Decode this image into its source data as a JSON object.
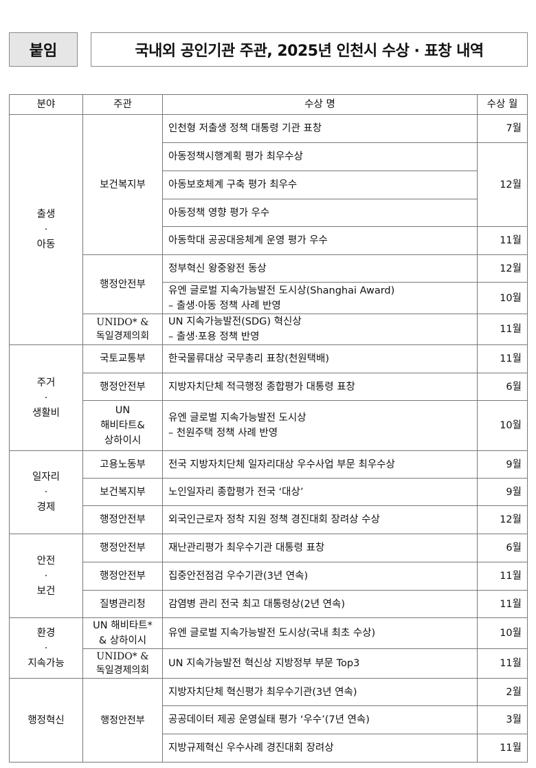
{
  "header": {
    "tag": "붙임",
    "title": "국내외 공인기관 주관, 2025년 인천시 수상 · 표창 내역"
  },
  "table": {
    "columns": [
      "분야",
      "주관",
      "수상 명",
      "수상 월"
    ],
    "rows": [
      {
        "field": [
          "출생",
          "·",
          "아동"
        ],
        "field_span": 8,
        "org": [
          "보건복지부"
        ],
        "org_span": 5,
        "award": [
          "인천형 저출생 정책 대통령 기관 표창"
        ],
        "month": "7월",
        "month_span": 1
      },
      {
        "award": [
          "아동정책시행계획 평가 최우수상"
        ],
        "month": "12월",
        "month_span": 3
      },
      {
        "award": [
          "아동보호체계 구축 평가 최우수"
        ]
      },
      {
        "award": [
          "아동정책 영향 평가 우수"
        ]
      },
      {
        "award": [
          "아동학대 공공대응체계 운영 평가 우수"
        ],
        "month": "11월",
        "month_span": 1
      },
      {
        "org": [
          "행정안전부"
        ],
        "org_span": 2,
        "award": [
          "정부혁신 왕중왕전 동상"
        ],
        "month": "12월",
        "month_span": 1
      },
      {
        "award": [
          "유엔 글로벌 지속가능발전 도시상(Shanghai Award)",
          "– 출생·아동 정책 사례 반영"
        ],
        "month": "10월",
        "month_span": 1
      },
      {
        "org": [
          "UNIDO* &",
          "독일경제의회"
        ],
        "org_serif": true,
        "org_span": 1,
        "award": [
          "UN 지속가능발전(SDG) 혁신상",
          "– 출생·포용 정책 반영"
        ],
        "month": "11월",
        "month_span": 1
      },
      {
        "field": [
          "주거",
          "·",
          "생활비"
        ],
        "field_span": 3,
        "org": [
          "국토교통부"
        ],
        "org_span": 1,
        "award": [
          "한국물류대상 국무총리 표창(천원택배)"
        ],
        "month": "11월",
        "month_span": 1
      },
      {
        "org": [
          "행정안전부"
        ],
        "org_span": 1,
        "award": [
          "지방자치단체 적극행정 종합평가 대통령 표창"
        ],
        "month": "6월",
        "month_span": 1
      },
      {
        "org": [
          "UN",
          "해비타트&",
          "상하이시"
        ],
        "org_span": 1,
        "award": [
          "유엔 글로벌 지속가능발전 도시상",
          "– 천원주택 정책 사례 반영"
        ],
        "month": "10월",
        "month_span": 1
      },
      {
        "field": [
          "일자리",
          "·",
          "경제"
        ],
        "field_span": 3,
        "org": [
          "고용노동부"
        ],
        "org_span": 1,
        "award": [
          "전국 지방자치단체 일자리대상 우수사업 부문 최우수상"
        ],
        "month": "9월",
        "month_span": 1
      },
      {
        "org": [
          "보건복지부"
        ],
        "org_span": 1,
        "award": [
          "노인일자리 종합평가 전국 ‘대상’"
        ],
        "month": "9월",
        "month_span": 1
      },
      {
        "org": [
          "행정안전부"
        ],
        "org_span": 1,
        "award": [
          "외국인근로자 정착 지원 정책 경진대회 장려상 수상"
        ],
        "month": "12월",
        "month_span": 1
      },
      {
        "field": [
          "안전",
          "·",
          "보건"
        ],
        "field_span": 3,
        "org": [
          "행정안전부"
        ],
        "org_span": 1,
        "award": [
          "재난관리평가 최우수기관 대통령 표창"
        ],
        "month": "6월",
        "month_span": 1
      },
      {
        "org": [
          "행정안전부"
        ],
        "org_span": 1,
        "award": [
          "집중안전점검 우수기관(3년 연속)"
        ],
        "month": "11월",
        "month_span": 1
      },
      {
        "org": [
          "질병관리청"
        ],
        "org_span": 1,
        "award": [
          "감염병 관리 전국 최고 대통령상(2년 연속)"
        ],
        "month": "11월",
        "month_span": 1
      },
      {
        "field": [
          "환경",
          "·",
          "지속가능"
        ],
        "field_span": 2,
        "org": [
          "UN 해비타트*",
          "& 상하이시"
        ],
        "org_span": 1,
        "award": [
          "유엔 글로벌 지속가능발전 도시상(국내 최초 수상)"
        ],
        "month": "10월",
        "month_span": 1
      },
      {
        "org": [
          "UNIDO* &",
          "독일경제의회"
        ],
        "org_serif": true,
        "org_span": 1,
        "award": [
          "UN 지속가능발전 혁신상 지방정부 부문 Top3"
        ],
        "month": "11월",
        "month_span": 1
      },
      {
        "field": [
          "행정혁신"
        ],
        "field_span": 3,
        "org": [
          "행정안전부"
        ],
        "org_serif": true,
        "org_span": 3,
        "award": [
          "지방자치단체 혁신평가 최우수기관(3년 연속)"
        ],
        "month": "2월",
        "month_span": 1
      },
      {
        "award": [
          "공공데이터 제공 운영실태 평가 ‘우수’(7년 연속)"
        ],
        "month": "3월",
        "month_span": 1
      },
      {
        "award": [
          "지방규제혁신 우수사례 경진대회 장려상"
        ],
        "month": "11월",
        "month_span": 1
      }
    ]
  }
}
